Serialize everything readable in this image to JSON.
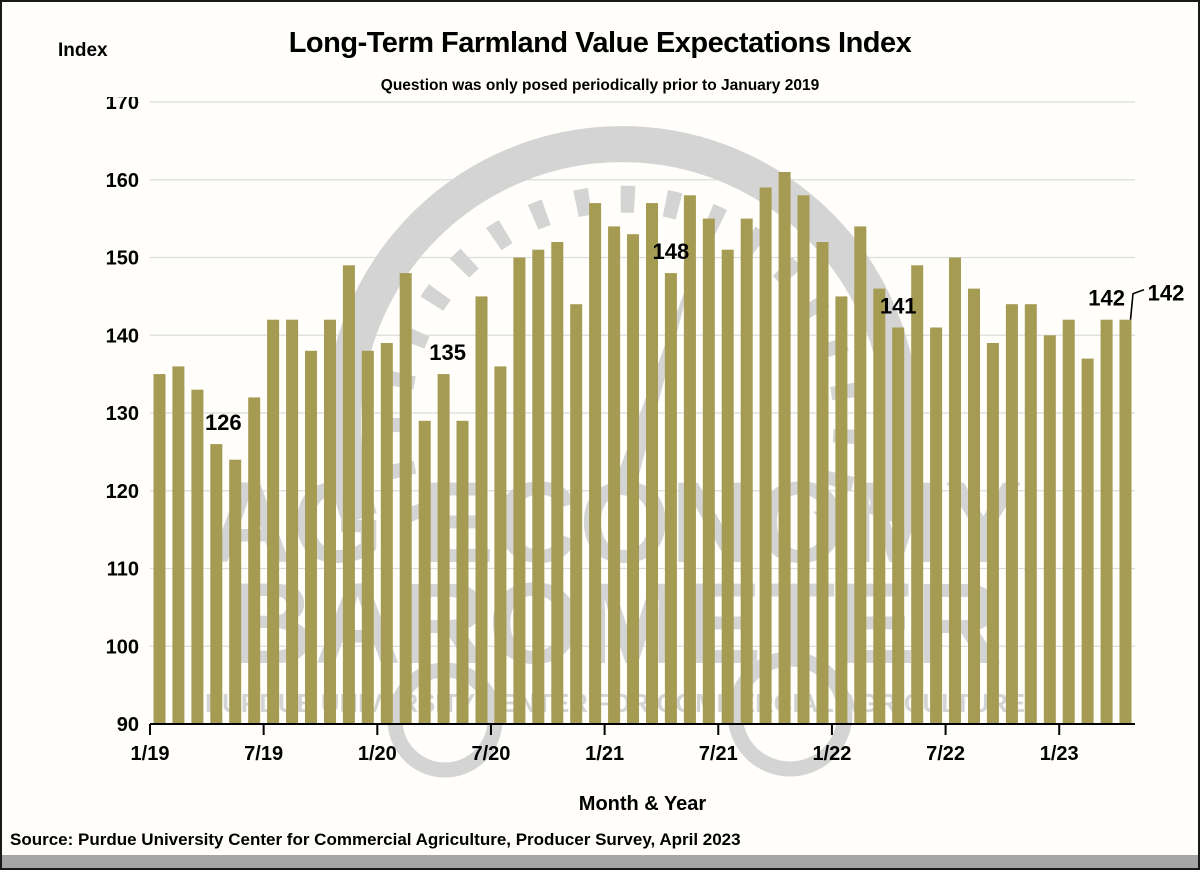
{
  "header": {
    "index_axis_label": "Index",
    "title": "Long-Term Farmland Value Expectations Index",
    "subtitle": "Question was only posed periodically prior to January 2019"
  },
  "x_axis": {
    "title": "Month & Year",
    "tick_labels": [
      "1/19",
      "7/19",
      "1/20",
      "7/20",
      "1/21",
      "7/21",
      "1/22",
      "7/22",
      "1/23"
    ]
  },
  "y_axis": {
    "tick_labels": [
      "170",
      "160",
      "150",
      "140",
      "130",
      "120",
      "110",
      "100",
      "90"
    ],
    "min": 90,
    "max": 170,
    "step": 10
  },
  "watermark": {
    "line1": "AG ECONOMY",
    "line2": "BAROMETER",
    "line3": "PURDUE UNIVERSITY CENTER FOR COMMERCIAL AGRICULTURE"
  },
  "footer": {
    "source": "Source: Purdue University Center for Commercial Agriculture, Producer Survey, April 2023"
  },
  "colors": {
    "bar": "#a59b52",
    "gridline": "#dcdcdc",
    "watermark": "#d4d4d4",
    "axis": "#000000",
    "bottom_strip": "#a5a5a5"
  },
  "chart_data": {
    "type": "bar",
    "title": "Long-Term Farmland Value Expectations Index",
    "xlabel": "Month & Year",
    "ylabel": "Index",
    "ylim": [
      90,
      170
    ],
    "grid": true,
    "x": [
      "1/19",
      "2/19",
      "3/19",
      "4/19",
      "5/19",
      "6/19",
      "7/19",
      "8/19",
      "9/19",
      "10/19",
      "11/19",
      "12/19",
      "1/20",
      "2/20",
      "3/20",
      "4/20",
      "5/20",
      "6/20",
      "7/20",
      "8/20",
      "9/20",
      "10/20",
      "11/20",
      "12/20",
      "1/21",
      "2/21",
      "3/21",
      "4/21",
      "5/21",
      "6/21",
      "7/21",
      "8/21",
      "9/21",
      "10/21",
      "11/21",
      "12/21",
      "1/22",
      "2/22",
      "3/22",
      "4/22",
      "5/22",
      "6/22",
      "7/22",
      "8/22",
      "9/22",
      "10/22",
      "11/22",
      "12/22",
      "1/23",
      "2/23",
      "3/23",
      "4/23"
    ],
    "values": [
      135,
      136,
      133,
      126,
      124,
      132,
      142,
      142,
      138,
      142,
      149,
      138,
      139,
      148,
      129,
      135,
      129,
      145,
      136,
      150,
      151,
      152,
      144,
      157,
      154,
      153,
      157,
      148,
      158,
      155,
      151,
      155,
      159,
      161,
      158,
      152,
      145,
      154,
      146,
      141,
      149,
      141,
      150,
      146,
      139,
      144,
      144,
      140,
      142,
      137,
      142,
      142
    ],
    "annotations": [
      {
        "label": "126",
        "month": "4/19",
        "dx": 7
      },
      {
        "label": "135",
        "month": "4/20",
        "dx": 4
      },
      {
        "label": "148",
        "month": "4/21",
        "dx": 0
      },
      {
        "label": "141",
        "month": "4/22",
        "dx": 0
      },
      {
        "label": "142",
        "month": "3/23",
        "dx": 0
      },
      {
        "label": "142",
        "month": "4/23",
        "outside": true,
        "leader": true
      }
    ]
  }
}
